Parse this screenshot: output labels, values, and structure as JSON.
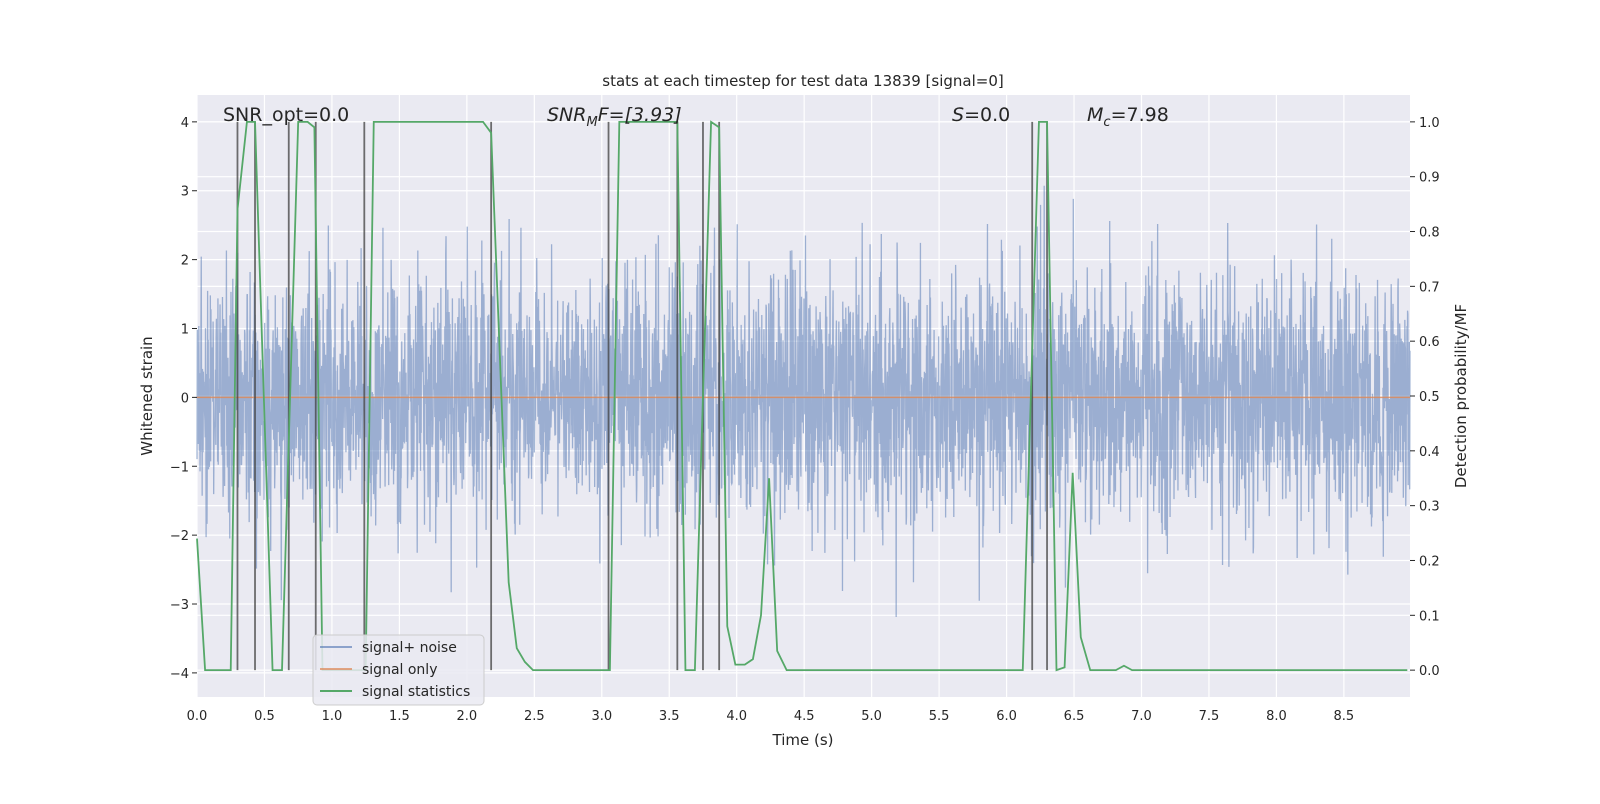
{
  "chart_data": {
    "type": "line",
    "title": "stats at each timestep for test data 13839 [signal=0]",
    "xlabel": "Time (s)",
    "ylabel": "Whitened strain",
    "ylabel_right": "Detection probability/MF",
    "xlim": [
      0,
      8.99
    ],
    "ylim": [
      -4.35,
      4.39
    ],
    "ylim_right": [
      -0.049,
      1.049
    ],
    "grid": true,
    "legend_placement": "lower-left",
    "xticks": [
      0.0,
      0.5,
      1.0,
      1.5,
      2.0,
      2.5,
      3.0,
      3.5,
      4.0,
      4.5,
      5.0,
      5.5,
      6.0,
      6.5,
      7.0,
      7.5,
      8.0,
      8.5
    ],
    "xtick_labels": [
      "0.0",
      "0.5",
      "1.0",
      "1.5",
      "2.0",
      "2.5",
      "3.0",
      "3.5",
      "4.0",
      "4.5",
      "5.0",
      "5.5",
      "6.0",
      "6.5",
      "7.0",
      "7.5",
      "8.0",
      "8.5"
    ],
    "yticks": [
      -4,
      -3,
      -2,
      -1,
      0,
      1,
      2,
      3,
      4
    ],
    "ytick_labels": [
      "−4",
      "−3",
      "−2",
      "−1",
      "0",
      "1",
      "2",
      "3",
      "4"
    ],
    "yticks_right": [
      0.0,
      0.1,
      0.2,
      0.3,
      0.4,
      0.5,
      0.6,
      0.7,
      0.8,
      0.9,
      1.0
    ],
    "ytick_labels_right": [
      "0.0",
      "0.1",
      "0.2",
      "0.3",
      "0.4",
      "0.5",
      "0.6",
      "0.7",
      "0.8",
      "0.9",
      "1.0"
    ],
    "annotations": {
      "snr_opt": "SNR_opt=0.0",
      "snr_mf_main": "SNR",
      "snr_mf_sub": "M",
      "snr_mf_rest": "F=[3.93]",
      "s_main": "S",
      "s_rest": "=0.0",
      "mc_main": "M",
      "mc_sub": "c",
      "mc_rest": "=7.98"
    },
    "series": [
      {
        "name": "signal+ noise",
        "color": "#4c72b0",
        "axis": "left",
        "kind": "gaussian-noise",
        "std": 0.9,
        "samples": 4000
      },
      {
        "name": "signal only",
        "color": "#dd8452",
        "axis": "left",
        "x": [
          0,
          8.99
        ],
        "y": [
          0,
          0
        ]
      },
      {
        "name": "signal statistics",
        "color": "#55a868",
        "axis": "right",
        "x": [
          0.0,
          0.06,
          0.25,
          0.3,
          0.37,
          0.43,
          0.56,
          0.63,
          0.75,
          0.82,
          0.87,
          0.93,
          1.25,
          1.31,
          2.12,
          2.18,
          2.31,
          2.37,
          2.43,
          2.49,
          3.06,
          3.13,
          3.56,
          3.62,
          3.69,
          3.81,
          3.87,
          3.93,
          3.99,
          4.06,
          4.12,
          4.18,
          4.24,
          4.3,
          4.37,
          6.12,
          6.24,
          6.3,
          6.37,
          6.43,
          6.49,
          6.55,
          6.62,
          6.81,
          6.87,
          6.93,
          8.97
        ],
        "y": [
          0.24,
          0.0,
          0.0,
          0.84,
          1.0,
          1.0,
          0.0,
          0.0,
          1.0,
          1.0,
          0.99,
          0.0,
          0.0,
          1.0,
          1.0,
          0.98,
          0.16,
          0.04,
          0.015,
          0.0,
          0.0,
          1.0,
          1.0,
          0.0,
          0.0,
          1.0,
          0.99,
          0.08,
          0.01,
          0.01,
          0.02,
          0.1,
          0.35,
          0.035,
          0.0,
          0.0,
          1.0,
          1.0,
          0.0,
          0.005,
          0.36,
          0.06,
          0.0,
          0.0,
          0.008,
          0.0,
          0.0
        ]
      }
    ],
    "vlines": [
      0.3,
      0.43,
      0.68,
      0.88,
      1.24,
      2.18,
      3.05,
      3.56,
      3.75,
      3.87,
      6.19,
      6.3
    ],
    "vline_color": "#404040"
  }
}
